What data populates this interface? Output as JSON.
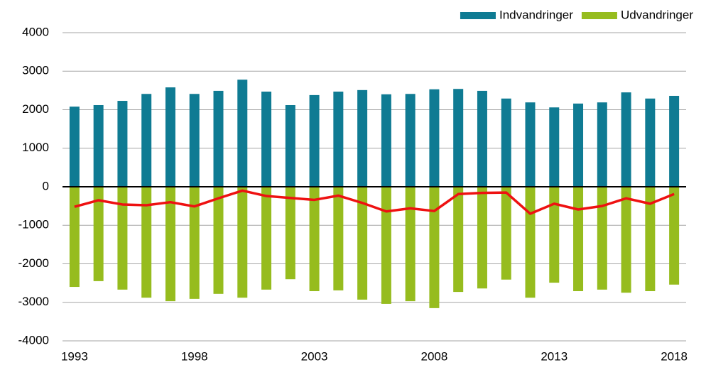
{
  "chart_data": {
    "type": "bar",
    "x": [
      1993,
      1994,
      1995,
      1996,
      1997,
      1998,
      1999,
      2000,
      2001,
      2002,
      2003,
      2004,
      2005,
      2006,
      2007,
      2008,
      2009,
      2010,
      2011,
      2012,
      2013,
      2014,
      2015,
      2016,
      2017,
      2018
    ],
    "xlim": [
      1992.5,
      2018.5
    ],
    "xticks": [
      1993,
      1998,
      2003,
      2008,
      2013,
      2018
    ],
    "ylim": [
      -4000,
      4000
    ],
    "yticks": [
      -4000,
      -3000,
      -2000,
      -1000,
      0,
      1000,
      2000,
      3000,
      4000
    ],
    "grid": true,
    "legend": "top-right",
    "series": [
      {
        "name": "Indvandringer",
        "type": "bar",
        "color": "#0f7b93",
        "values": [
          2080,
          2120,
          2230,
          2410,
          2580,
          2410,
          2490,
          2780,
          2470,
          2120,
          2380,
          2470,
          2510,
          2400,
          2410,
          2530,
          2540,
          2490,
          2290,
          2190,
          2060,
          2160,
          2190,
          2450,
          2290,
          2360
        ]
      },
      {
        "name": "Udvandringer",
        "type": "bar",
        "color": "#96bc1e",
        "values": [
          -2600,
          -2450,
          -2670,
          -2880,
          -2970,
          -2910,
          -2780,
          -2880,
          -2670,
          -2400,
          -2710,
          -2690,
          -2930,
          -3040,
          -2970,
          -3150,
          -2730,
          -2640,
          -2410,
          -2880,
          -2490,
          -2710,
          -2670,
          -2750,
          -2710,
          -2540
        ]
      },
      {
        "type": "line",
        "color": "#ee1111",
        "values": [
          -520,
          -350,
          -460,
          -480,
          -400,
          -510,
          -300,
          -100,
          -240,
          -290,
          -340,
          -230,
          -420,
          -640,
          -560,
          -630,
          -190,
          -160,
          -150,
          -700,
          -440,
          -590,
          -500,
          -300,
          -440,
          -190
        ]
      }
    ]
  }
}
